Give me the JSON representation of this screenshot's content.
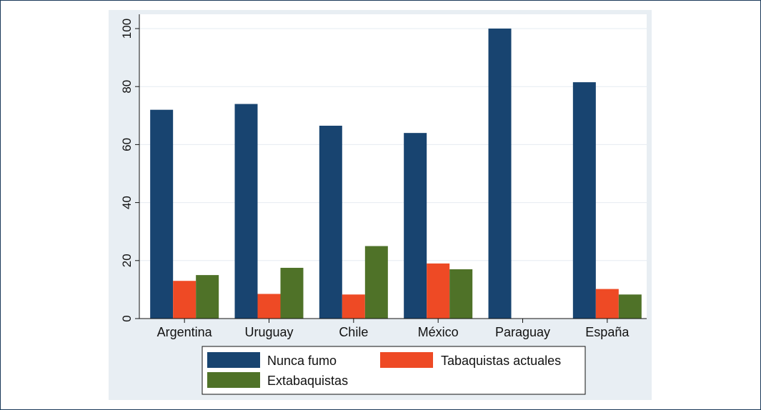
{
  "chart_data": {
    "type": "bar",
    "categories": [
      "Argentina",
      "Uruguay",
      "Chile",
      "México",
      "Paraguay",
      "España"
    ],
    "series": [
      {
        "name": "Nunca fumo",
        "color": "#184470",
        "values": [
          72,
          74,
          66.5,
          64,
          100,
          81.5
        ]
      },
      {
        "name": "Tabaquistas actuales",
        "color": "#ee4a25",
        "values": [
          13,
          8.5,
          8.3,
          19,
          null,
          10.2
        ]
      },
      {
        "name": "Extabaquistas",
        "color": "#4f7228",
        "values": [
          15,
          17.5,
          25,
          17,
          null,
          8.3
        ]
      }
    ],
    "ylim": [
      0,
      100
    ],
    "yticks": [
      0,
      20,
      40,
      60,
      80,
      100
    ],
    "grid": true,
    "legend_position": "bottom"
  }
}
